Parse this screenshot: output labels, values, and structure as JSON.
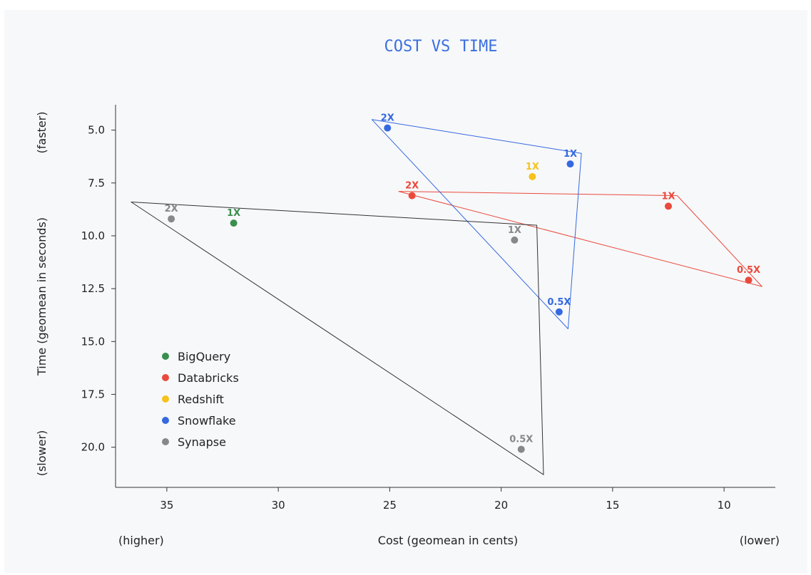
{
  "chart_data": {
    "type": "scatter",
    "title": "COST VS TIME",
    "xlabel": "Cost (geomean in cents)",
    "x_low_label": "(higher)",
    "x_high_label": "(lower)",
    "ylabel": "Time (geomean in seconds)",
    "y_top_label": "(faster)",
    "y_bottom_label": "(slower)",
    "x_axis_reversed": true,
    "y_axis_reversed": true,
    "xlim": [
      37.3,
      7.7
    ],
    "ylim": [
      3.8,
      21.9
    ],
    "x_ticks": [
      35,
      30,
      25,
      20,
      15,
      10
    ],
    "x_tick_labels": [
      "35",
      "30",
      "25",
      "20",
      "15",
      "10"
    ],
    "y_ticks": [
      5.0,
      7.5,
      10.0,
      12.5,
      15.0,
      17.5,
      20.0
    ],
    "y_tick_labels": [
      "5.0",
      "7.5",
      "10.0",
      "12.5",
      "15.0",
      "17.5",
      "20.0"
    ],
    "grid": false,
    "legend_position": "bottom-left",
    "series": [
      {
        "name": "BigQuery",
        "color": "#3a8f4e",
        "hull": [],
        "points": [
          {
            "label": "1X",
            "x": 32.0,
            "y": 9.4
          }
        ]
      },
      {
        "name": "Databricks",
        "color": "#ea4a3c",
        "hull": [
          [
            24.6,
            7.9
          ],
          [
            12.1,
            8.1
          ],
          [
            8.3,
            12.4
          ]
        ],
        "points": [
          {
            "label": "2X",
            "x": 24.0,
            "y": 8.1
          },
          {
            "label": "1X",
            "x": 12.5,
            "y": 8.6
          },
          {
            "label": "0.5X",
            "x": 8.9,
            "y": 12.1
          }
        ]
      },
      {
        "name": "Redshift",
        "color": "#f6c21b",
        "hull": [],
        "points": [
          {
            "label": "1X",
            "x": 18.6,
            "y": 7.2
          }
        ]
      },
      {
        "name": "Snowflake",
        "color": "#3569e0",
        "hull": [
          [
            25.8,
            4.5
          ],
          [
            16.4,
            6.1
          ],
          [
            17.0,
            14.4
          ]
        ],
        "points": [
          {
            "label": "2X",
            "x": 25.1,
            "y": 4.9
          },
          {
            "label": "1X",
            "x": 16.9,
            "y": 6.6
          },
          {
            "label": "0.5X",
            "x": 17.4,
            "y": 13.6
          }
        ]
      },
      {
        "name": "Synapse",
        "color": "#888888",
        "hull": [
          [
            36.6,
            8.4
          ],
          [
            18.4,
            9.5
          ],
          [
            18.1,
            21.3
          ]
        ],
        "points": [
          {
            "label": "2X",
            "x": 34.8,
            "y": 9.2
          },
          {
            "label": "1X",
            "x": 19.4,
            "y": 10.2
          },
          {
            "label": "0.5X",
            "x": 19.1,
            "y": 20.1
          }
        ]
      }
    ]
  }
}
